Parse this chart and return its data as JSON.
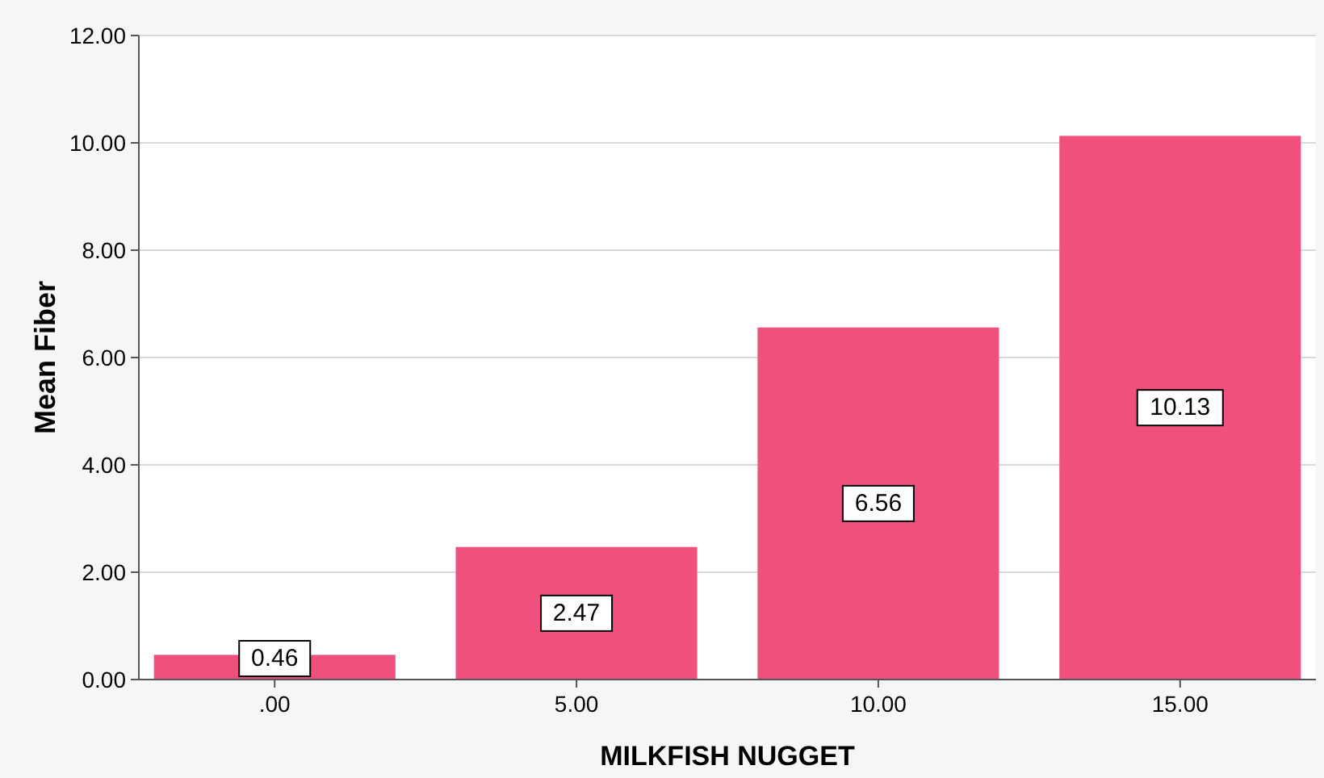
{
  "chart_data": {
    "type": "bar",
    "xlabel": "MILKFISH NUGGET",
    "ylabel": "Mean Fiber",
    "categories": [
      ".00",
      "5.00",
      "10.00",
      "15.00"
    ],
    "values": [
      0.46,
      2.47,
      6.56,
      10.13
    ],
    "color": "#f0507e",
    "data_labels": true,
    "ylim": [
      0,
      12
    ],
    "yticks": [
      {
        "value": 0,
        "label": "0.00"
      },
      {
        "value": 2,
        "label": "2.00"
      },
      {
        "value": 4,
        "label": "4.00"
      },
      {
        "value": 6,
        "label": "6.00"
      },
      {
        "value": 8,
        "label": "8.00"
      },
      {
        "value": 10,
        "label": "10.00"
      },
      {
        "value": 12,
        "label": "12.00"
      }
    ],
    "grid": "y"
  }
}
